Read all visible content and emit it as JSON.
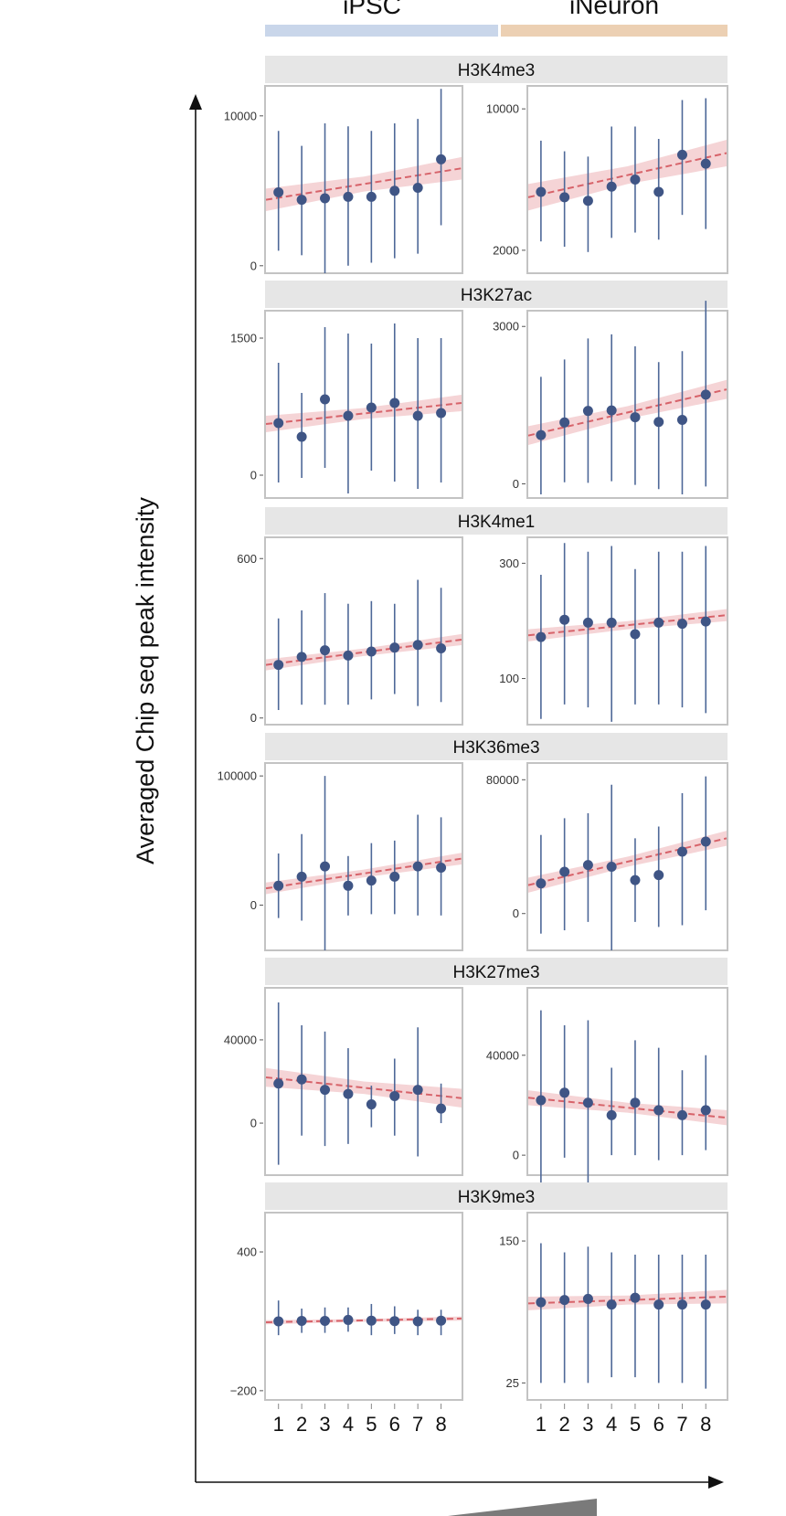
{
  "chart_data": {
    "type": "scatter",
    "ylabel": "Averaged Chip seq peak intensity",
    "groups": [
      "iPSC",
      "iNeuron"
    ],
    "x": [
      1,
      2,
      3,
      4,
      5,
      6,
      7,
      8
    ],
    "colors": {
      "point": "#3f5585",
      "errorbar": "#4e6898",
      "trend": "#d7636a",
      "band": "#f2c6c8",
      "strip": "#e6e6e6",
      "panel_border": "#c3c3c3",
      "ipsc_bar": "#c9d6ea",
      "ineuron_bar": "#ecd0b3"
    },
    "panels": [
      {
        "mark": "H3K4me3",
        "iPSC": {
          "yticks": [
            0,
            10000
          ],
          "ylim": [
            -500,
            12000
          ],
          "mean": [
            4900,
            4400,
            4500,
            4600,
            4600,
            5000,
            5200,
            7100
          ],
          "lo": [
            1000,
            700,
            -500,
            0,
            200,
            500,
            800,
            2700
          ],
          "hi": [
            9000,
            8000,
            9500,
            9300,
            9000,
            9500,
            9800,
            11800
          ],
          "trend": [
            4400,
            6500
          ],
          "band_halfwidth": 500
        },
        "iNeuron": {
          "yticks": [
            2000,
            10000
          ],
          "ylim": [
            700,
            11300
          ],
          "mean": [
            5300,
            5000,
            4800,
            5600,
            6000,
            5300,
            7400,
            6900
          ],
          "lo": [
            2500,
            2200,
            1900,
            2700,
            3000,
            2600,
            4000,
            3200
          ],
          "hi": [
            8200,
            7600,
            7300,
            9000,
            9000,
            8300,
            10500,
            10600
          ],
          "trend": [
            5000,
            7500
          ],
          "band_halfwidth": 500
        }
      },
      {
        "mark": "H3K27ac",
        "iPSC": {
          "yticks": [
            0,
            1500
          ],
          "ylim": [
            -250,
            1800
          ],
          "mean": [
            570,
            420,
            830,
            650,
            740,
            790,
            650,
            680
          ],
          "lo": [
            -80,
            -30,
            80,
            -200,
            50,
            -70,
            -150,
            -80
          ],
          "hi": [
            1230,
            900,
            1620,
            1550,
            1440,
            1660,
            1500,
            1500
          ],
          "trend": [
            560,
            790
          ],
          "band_halfwidth": 60
        },
        "iNeuron": {
          "yticks": [
            0,
            3000
          ],
          "ylim": [
            -270,
            3300
          ],
          "mean": [
            930,
            1170,
            1390,
            1400,
            1270,
            1180,
            1220,
            1700
          ],
          "lo": [
            -200,
            30,
            20,
            50,
            -20,
            -100,
            -200,
            -50
          ],
          "hi": [
            2040,
            2370,
            2770,
            2850,
            2620,
            2320,
            2530,
            3490
          ],
          "trend": [
            920,
            1800
          ],
          "band_halfwidth": 120
        }
      },
      {
        "mark": "H3K4me1",
        "iPSC": {
          "yticks": [
            0,
            600
          ],
          "ylim": [
            -25,
            680
          ],
          "mean": [
            200,
            230,
            255,
            235,
            250,
            265,
            275,
            262
          ],
          "lo": [
            30,
            50,
            50,
            50,
            70,
            90,
            45,
            60
          ],
          "hi": [
            375,
            405,
            470,
            430,
            440,
            430,
            520,
            490
          ],
          "trend": [
            200,
            295
          ],
          "band_halfwidth": 14
        },
        "iNeuron": {
          "yticks": [
            100,
            300
          ],
          "ylim": [
            20,
            345
          ],
          "mean": [
            172,
            202,
            197,
            197,
            177,
            197,
            195,
            199
          ],
          "lo": [
            30,
            55,
            50,
            25,
            55,
            55,
            50,
            40
          ],
          "hi": [
            280,
            335,
            320,
            330,
            290,
            320,
            320,
            330
          ],
          "trend": [
            175,
            210
          ],
          "band_halfwidth": 7
        }
      },
      {
        "mark": "H3K36me3",
        "iPSC": {
          "yticks": [
            0,
            100000
          ],
          "ylim": [
            -35000,
            110000
          ],
          "mean": [
            15000,
            22000,
            30000,
            15000,
            19000,
            22000,
            30000,
            29000
          ],
          "lo": [
            -10000,
            -12000,
            -35000,
            -8000,
            -7000,
            -7000,
            -8000,
            -8000
          ],
          "hi": [
            40000,
            55000,
            100000,
            38000,
            48000,
            50000,
            70000,
            68000
          ],
          "trend": [
            13000,
            36000
          ],
          "band_halfwidth": 3000
        },
        "iNeuron": {
          "yticks": [
            0,
            80000
          ],
          "ylim": [
            -22000,
            90000
          ],
          "mean": [
            18000,
            25000,
            29000,
            28000,
            20000,
            23000,
            37000,
            43000
          ],
          "lo": [
            -12000,
            -10000,
            -5000,
            -22000,
            -5000,
            -8000,
            -7000,
            2000
          ],
          "hi": [
            47000,
            57000,
            60000,
            77000,
            45000,
            52000,
            72000,
            82000
          ],
          "trend": [
            17000,
            45000
          ],
          "band_halfwidth": 3000
        }
      },
      {
        "mark": "H3K27me3",
        "iPSC": {
          "yticks": [
            0,
            40000
          ],
          "ylim": [
            -25000,
            65000
          ],
          "mean": [
            19000,
            21000,
            16000,
            14000,
            9000,
            13000,
            16000,
            7000
          ],
          "lo": [
            -20000,
            -6000,
            -11000,
            -10000,
            -2000,
            -6000,
            -16000,
            0
          ],
          "hi": [
            58000,
            47000,
            44000,
            36000,
            18000,
            31000,
            46000,
            19000
          ],
          "trend": [
            22000,
            12000
          ],
          "band_halfwidth": 3000
        },
        "iNeuron": {
          "yticks": [
            0,
            40000
          ],
          "ylim": [
            -8000,
            67000
          ],
          "mean": [
            22000,
            25000,
            21000,
            16000,
            21000,
            18000,
            16000,
            18000
          ],
          "lo": [
            -20000,
            -1000,
            -14000,
            0,
            0,
            -2000,
            0,
            2000
          ],
          "hi": [
            58000,
            52000,
            54000,
            35000,
            46000,
            43000,
            34000,
            40000
          ],
          "trend": [
            23000,
            15000
          ],
          "band_halfwidth": 2000
        }
      },
      {
        "mark": "H3K9me3",
        "iPSC": {
          "yticks": [
            -200,
            400
          ],
          "ylim": [
            -240,
            570
          ],
          "mean": [
            100,
            102,
            102,
            106,
            103,
            101,
            100,
            103
          ],
          "lo": [
            40,
            50,
            50,
            55,
            40,
            45,
            40,
            40
          ],
          "hi": [
            190,
            155,
            160,
            160,
            175,
            165,
            150,
            150
          ],
          "trend": [
            96,
            112
          ],
          "band_halfwidth": 6
        },
        "iNeuron": {
          "yticks": [
            25,
            150
          ],
          "ylim": [
            10,
            175
          ],
          "mean": [
            96,
            98,
            99,
            94,
            100,
            94,
            94,
            94
          ],
          "lo": [
            25,
            25,
            25,
            30,
            30,
            25,
            25,
            20
          ],
          "hi": [
            148,
            140,
            145,
            140,
            138,
            138,
            138,
            138
          ],
          "trend": [
            95,
            101
          ],
          "band_halfwidth": 4
        }
      }
    ]
  }
}
